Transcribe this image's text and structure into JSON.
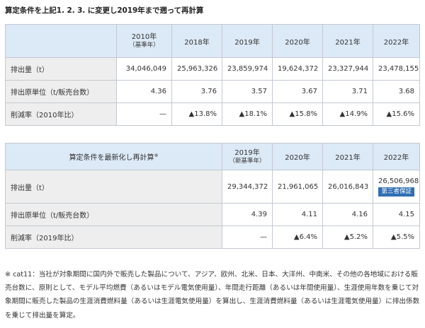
{
  "heading": "算定条件を上記1. 2. 3. に変更し2019年まで遡って再計算",
  "table1": {
    "headers": [
      {
        "main": "",
        "sub": ""
      },
      {
        "main": "2010年",
        "sub": "（基準年）"
      },
      {
        "main": "2018年",
        "sub": ""
      },
      {
        "main": "2019年",
        "sub": ""
      },
      {
        "main": "2020年",
        "sub": ""
      },
      {
        "main": "2021年",
        "sub": ""
      },
      {
        "main": "2022年",
        "sub": ""
      }
    ],
    "rows": [
      {
        "label": "排出量（t）",
        "values": [
          "34,046,049",
          "25,963,326",
          "23,859,974",
          "19,624,372",
          "23,327,944",
          "23,478,155"
        ]
      },
      {
        "label": "排出原単位（t/販売台数）",
        "values": [
          "4.36",
          "3.76",
          "3.57",
          "3.67",
          "3.71",
          "3.68"
        ]
      },
      {
        "label": "削減率（2010年比）",
        "values": [
          "—",
          "▲13.8%",
          "▲18.1%",
          "▲15.8%",
          "▲14.9%",
          "▲15.6%"
        ]
      }
    ]
  },
  "table2": {
    "title": "算定条件を最新化し再計算",
    "title_mark": "※",
    "headers": [
      {
        "main": "2019年",
        "sub": "（新基準年）"
      },
      {
        "main": "2020年",
        "sub": ""
      },
      {
        "main": "2021年",
        "sub": ""
      },
      {
        "main": "2022年",
        "sub": ""
      }
    ],
    "rows": [
      {
        "label": "排出量（t）",
        "values": [
          "29,344,372",
          "21,961,065",
          "26,016,843",
          "26,506,968"
        ]
      },
      {
        "label": "排出原単位（t/販売台数）",
        "values": [
          "4.39",
          "4.11",
          "4.16",
          "4.15"
        ]
      },
      {
        "label": "削減率（2019年比）",
        "values": [
          "—",
          "▲6.4%",
          "▲5.2%",
          "▲5.5%"
        ]
      }
    ],
    "badge": "第三者保証"
  },
  "note": "※ cat11：当社が対象期間に国内外で販売した製品について、アジア、欧州、北米、日本、大洋州、中南米、その他の各地域における販売台数に、原則として、モデル平均燃費（あるいはモデル電気使用量）、年間走行距離（あるいは年間使用量）、生涯使用年数を乗じて対象期間に販売した製品の生涯消費燃料量（あるいは生涯電気使用量）を算出し、生涯消費燃料量（あるいは生涯電気使用量）に排出係数を乗じて排出量を算定。",
  "colors": {
    "header_bg": "#dce9f6",
    "label_bg": "#eeeeee",
    "border": "#c3c9d2",
    "badge_bg": "#2f6fb4"
  }
}
